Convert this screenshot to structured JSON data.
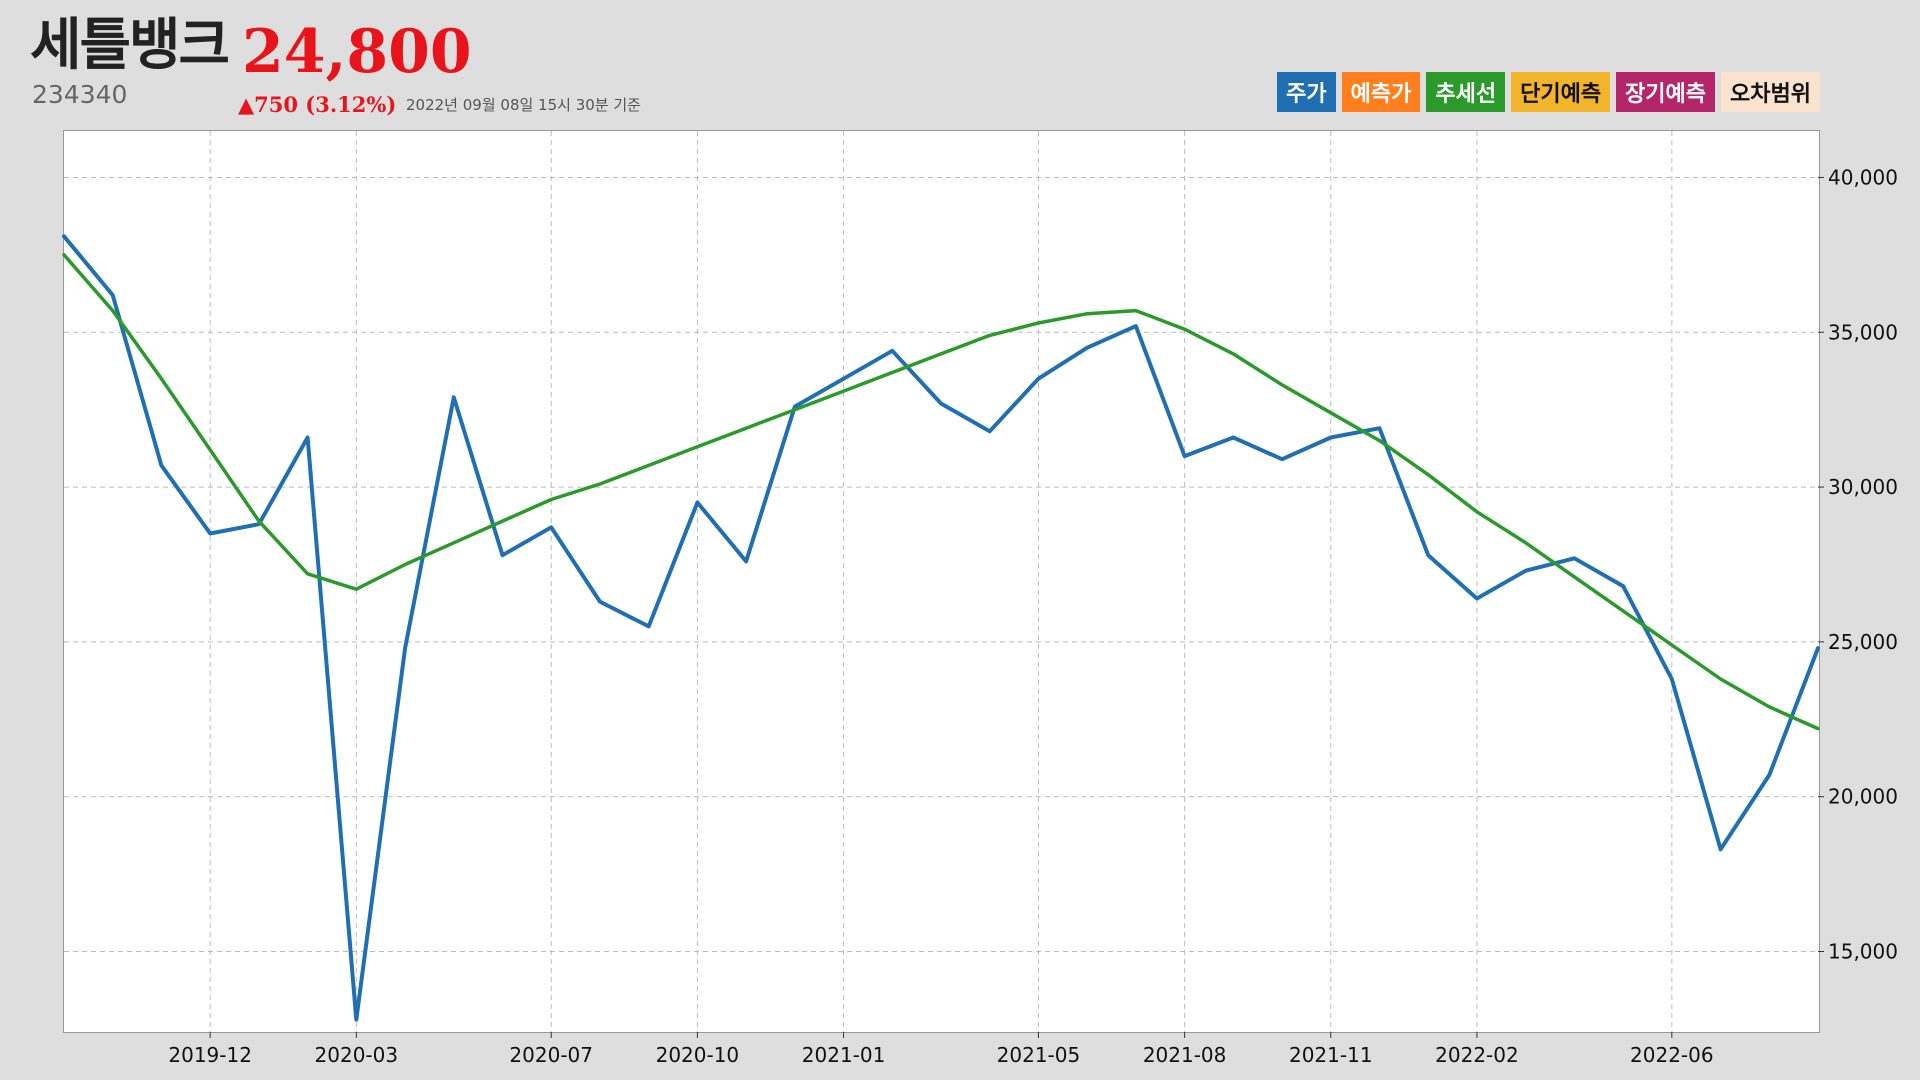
{
  "stock": {
    "name": "세틀뱅크",
    "price": "24,800",
    "code": "234340",
    "change": "▲750 (3.12%)",
    "as_of": "2022년 09월 08일 15시 30분 기준"
  },
  "legend": [
    {
      "label": "주가",
      "bg": "#1f6fb2",
      "fg": "#ffffff"
    },
    {
      "label": "예측가",
      "bg": "#ff7f1e",
      "fg": "#ffffff"
    },
    {
      "label": "추세선",
      "bg": "#2a9a2a",
      "fg": "#ffffff"
    },
    {
      "label": "단기예측",
      "bg": "#f2b42b",
      "fg": "#111111"
    },
    {
      "label": "장기예측",
      "bg": "#b3266a",
      "fg": "#ffffff"
    },
    {
      "label": "오차범위",
      "bg": "#fbe3d0",
      "fg": "#111111"
    }
  ],
  "chart_data": {
    "type": "line",
    "title": "",
    "xlabel": "",
    "ylabel": "",
    "x_ticks": [
      "2019-12",
      "2020-03",
      "2020-07",
      "2020-10",
      "2021-01",
      "2021-05",
      "2021-08",
      "2021-11",
      "2022-02",
      "2022-06"
    ],
    "y_ticks": [
      "15,000",
      "20,000",
      "25,000",
      "30,000",
      "35,000",
      "40,000"
    ],
    "x_range": [
      "2019-09",
      "2022-09"
    ],
    "ylim": [
      12400,
      41500
    ],
    "grid": true,
    "y_axis_side": "right",
    "series": [
      {
        "name": "주가",
        "color": "#1f6fb2",
        "x": [
          "2019-09",
          "2019-10",
          "2019-11",
          "2019-12",
          "2020-01",
          "2020-02",
          "2020-03",
          "2020-04",
          "2020-05",
          "2020-06",
          "2020-07",
          "2020-08",
          "2020-09",
          "2020-10",
          "2020-11",
          "2020-12",
          "2021-01",
          "2021-02",
          "2021-03",
          "2021-04",
          "2021-05",
          "2021-06",
          "2021-07",
          "2021-08",
          "2021-09",
          "2021-10",
          "2021-11",
          "2021-12",
          "2022-01",
          "2022-02",
          "2022-03",
          "2022-04",
          "2022-05",
          "2022-06",
          "2022-07",
          "2022-08",
          "2022-09"
        ],
        "values": [
          38100,
          36200,
          30700,
          28500,
          28800,
          31600,
          12800,
          24800,
          32900,
          27800,
          28700,
          26300,
          25500,
          29500,
          27600,
          32600,
          33500,
          34400,
          32700,
          31800,
          33500,
          34500,
          35200,
          31000,
          31600,
          30900,
          31600,
          31900,
          27800,
          26400,
          27300,
          27700,
          26800,
          23800,
          18300,
          20700,
          24800
        ]
      },
      {
        "name": "추세선",
        "color": "#2a9a2a",
        "x": [
          "2019-09",
          "2019-10",
          "2019-11",
          "2019-12",
          "2020-01",
          "2020-02",
          "2020-03",
          "2020-04",
          "2020-05",
          "2020-06",
          "2020-07",
          "2020-08",
          "2020-09",
          "2020-10",
          "2020-11",
          "2020-12",
          "2021-01",
          "2021-02",
          "2021-03",
          "2021-04",
          "2021-05",
          "2021-06",
          "2021-07",
          "2021-08",
          "2021-09",
          "2021-10",
          "2021-11",
          "2021-12",
          "2022-01",
          "2022-02",
          "2022-03",
          "2022-04",
          "2022-05",
          "2022-06",
          "2022-07",
          "2022-08",
          "2022-09"
        ],
        "values": [
          37500,
          35700,
          33500,
          31200,
          28900,
          27200,
          26700,
          27500,
          28200,
          28900,
          29600,
          30100,
          30700,
          31300,
          31900,
          32500,
          33100,
          33700,
          34300,
          34900,
          35300,
          35600,
          35700,
          35100,
          34300,
          33300,
          32400,
          31500,
          30400,
          29200,
          28200,
          27100,
          26000,
          24900,
          23800,
          22900,
          22200
        ]
      }
    ]
  }
}
